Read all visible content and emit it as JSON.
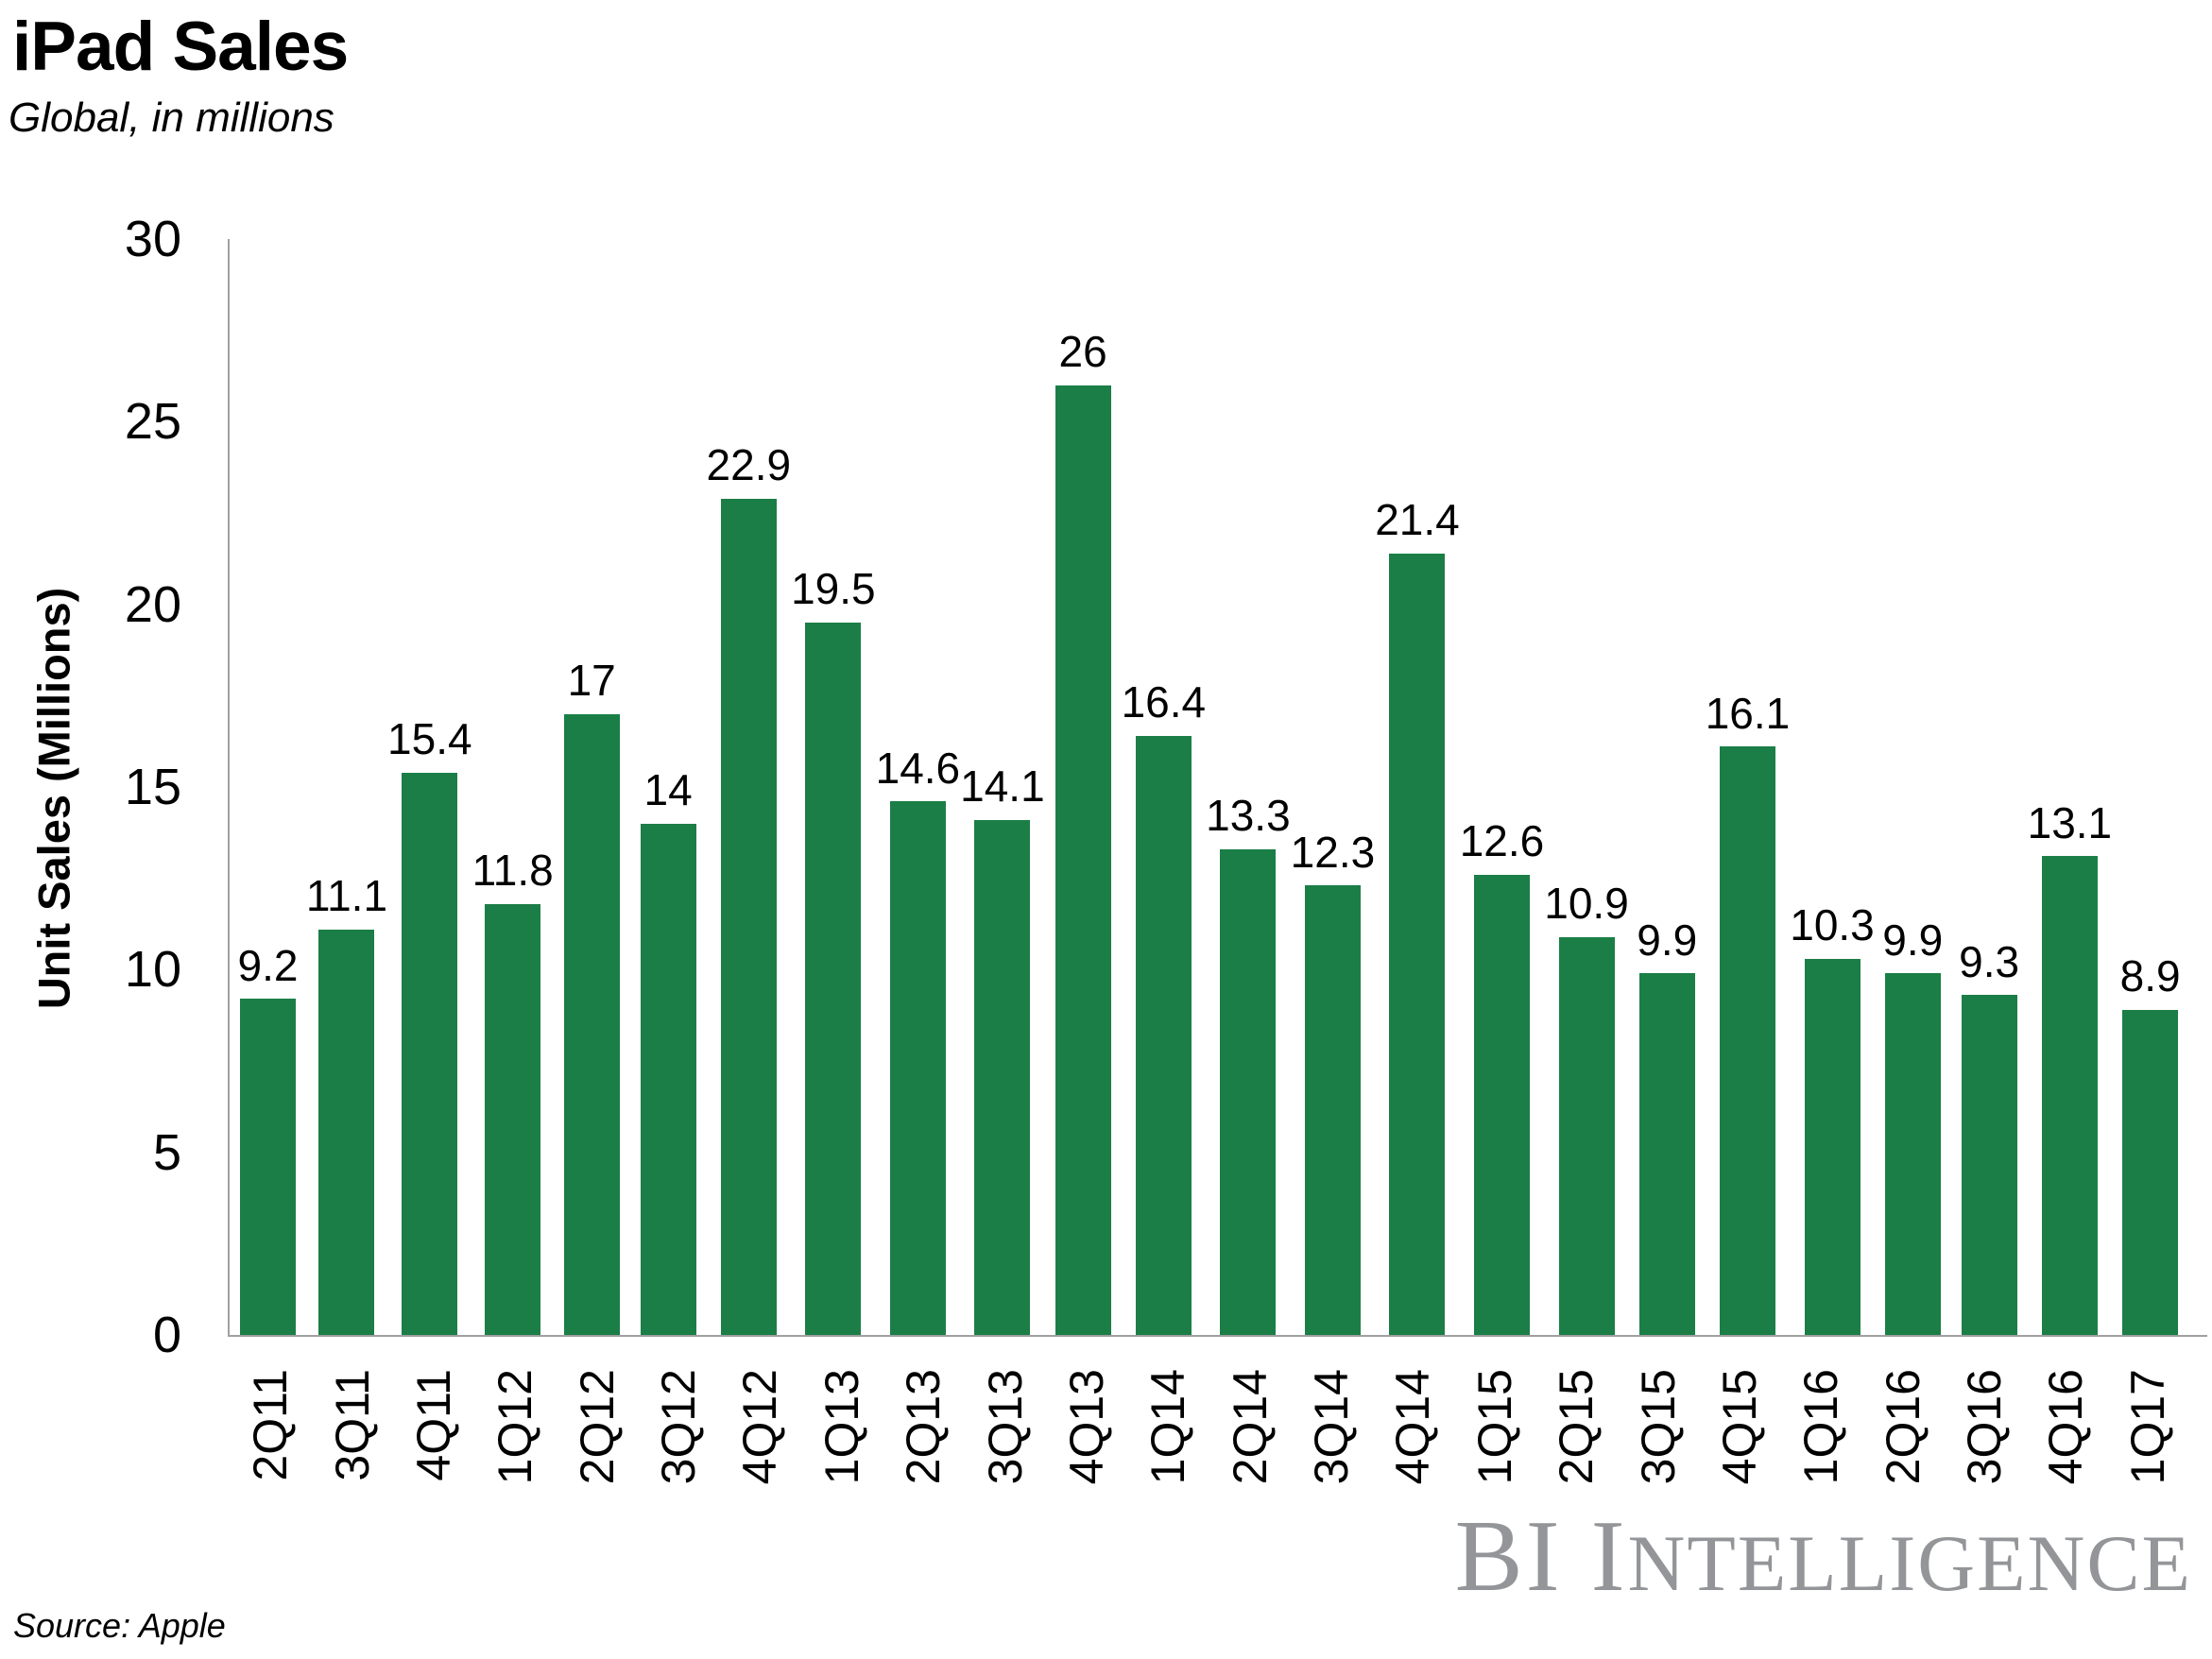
{
  "header": {
    "title": "iPad Sales",
    "subtitle": "Global, in millions"
  },
  "chart_data": {
    "type": "bar",
    "title": "iPad Sales",
    "subtitle": "Global, in millions",
    "categories": [
      "2Q11",
      "3Q11",
      "4Q11",
      "1Q12",
      "2Q12",
      "3Q12",
      "4Q12",
      "1Q13",
      "2Q13",
      "3Q13",
      "4Q13",
      "1Q14",
      "2Q14",
      "3Q14",
      "4Q14",
      "1Q15",
      "2Q15",
      "3Q15",
      "4Q15",
      "1Q16",
      "2Q16",
      "3Q16",
      "4Q16",
      "1Q17"
    ],
    "values": [
      9.2,
      11.1,
      15.4,
      11.8,
      17,
      14,
      22.9,
      19.5,
      14.6,
      14.1,
      26,
      16.4,
      13.3,
      12.3,
      21.4,
      12.6,
      10.9,
      9.9,
      16.1,
      10.3,
      9.9,
      9.3,
      13.1,
      8.9
    ],
    "labels": [
      "9.2",
      "11.1",
      "15.4",
      "11.8",
      "17",
      "14",
      "22.9",
      "19.5",
      "14.6",
      "14.1",
      "26",
      "16.4",
      "13.3",
      "12.3",
      "21.4",
      "12.6",
      "10.9",
      "9.9",
      "16.1",
      "10.3",
      "9.9",
      "9.3",
      "13.1",
      "8.9"
    ],
    "xlabel": "",
    "ylabel": "Unit Sales (Millions)",
    "ylim": [
      0,
      30
    ],
    "yticks": [
      0,
      5,
      10,
      15,
      20,
      25,
      30
    ],
    "bar_color": "#1b7e47",
    "axis_color": "#a0a0a0",
    "grid": false,
    "legend": null
  },
  "footer": {
    "source": "Source: Apple",
    "logo_text": "BI Intelligence",
    "logo_large": "BI I",
    "logo_small": "NTELLIGENCE",
    "logo_color": "#939598"
  }
}
